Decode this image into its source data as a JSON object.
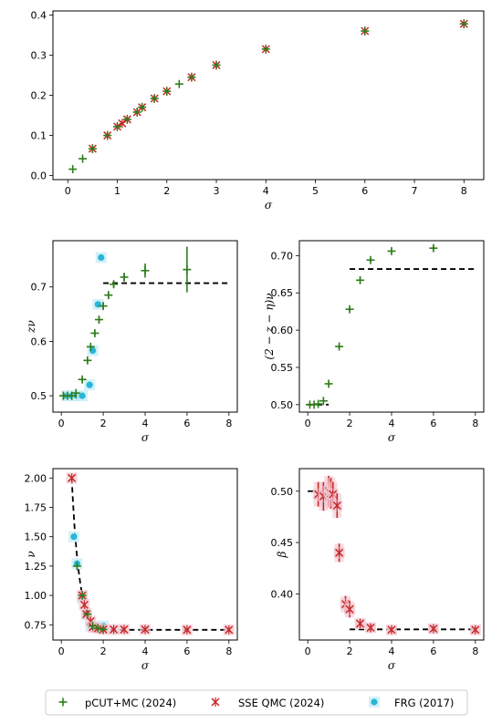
{
  "colors": {
    "pcut": "#2e7d1a",
    "sse": "#c62828",
    "frg": "#29b6d6",
    "frg_halo": "#c9eef8",
    "sse_halo": "#f2c6d0",
    "dashed": "#000000"
  },
  "legend": {
    "items": [
      {
        "key": "pcut",
        "label": "pCUT+MC (2024)"
      },
      {
        "key": "sse",
        "label": "SSE QMC (2024)"
      },
      {
        "key": "frg",
        "label": "FRG (2017)"
      }
    ]
  },
  "chart_data": [
    {
      "id": "top",
      "type": "scatter",
      "xlabel": "σ",
      "ylabel": "",
      "xlim": [
        -0.3,
        8.4
      ],
      "ylim": [
        -0.01,
        0.41
      ],
      "xticks": [
        0,
        1,
        2,
        3,
        4,
        5,
        6,
        7,
        8
      ],
      "yticks": [
        0.0,
        0.1,
        0.2,
        0.3,
        0.4
      ],
      "ytick_labels": [
        "0.0",
        "0.1",
        "0.2",
        "0.3",
        "0.4"
      ],
      "series": [
        {
          "key": "pcut",
          "points": [
            [
              0.1,
              0.016
            ],
            [
              0.3,
              0.042
            ],
            [
              0.5,
              0.067
            ],
            [
              0.8,
              0.1
            ],
            [
              1.0,
              0.122
            ],
            [
              1.2,
              0.14
            ],
            [
              1.4,
              0.158
            ],
            [
              1.5,
              0.17
            ],
            [
              1.75,
              0.192
            ],
            [
              2.0,
              0.21
            ],
            [
              2.25,
              0.228
            ],
            [
              2.5,
              0.245
            ],
            [
              3.0,
              0.275
            ],
            [
              4.0,
              0.315
            ],
            [
              6.0,
              0.36
            ],
            [
              8.0,
              0.378
            ]
          ]
        },
        {
          "key": "sse",
          "points": [
            [
              0.5,
              0.067
            ],
            [
              0.8,
              0.1
            ],
            [
              1.0,
              0.122
            ],
            [
              1.1,
              0.13
            ],
            [
              1.2,
              0.14
            ],
            [
              1.4,
              0.158
            ],
            [
              1.5,
              0.17
            ],
            [
              1.75,
              0.192
            ],
            [
              2.0,
              0.21
            ],
            [
              2.5,
              0.245
            ],
            [
              3.0,
              0.275
            ],
            [
              4.0,
              0.315
            ],
            [
              6.0,
              0.36
            ],
            [
              8.0,
              0.378
            ]
          ]
        }
      ]
    },
    {
      "id": "znu",
      "type": "scatter",
      "xlabel": "σ",
      "ylabel": "zν",
      "xlim": [
        -0.4,
        8.4
      ],
      "ylim": [
        0.47,
        0.785
      ],
      "xticks": [
        0,
        2,
        4,
        6,
        8
      ],
      "yticks": [
        0.5,
        0.6,
        0.7
      ],
      "ytick_labels": [
        "0.5",
        "0.6",
        "0.7"
      ],
      "dashed": [
        {
          "x": [
            0.0,
            1.0
          ],
          "y": 0.5
        },
        {
          "x": [
            2.0,
            8.0
          ],
          "y": 0.707
        }
      ],
      "series": [
        {
          "key": "pcut",
          "points": [
            [
              0.1,
              0.5
            ],
            [
              0.3,
              0.5
            ],
            [
              0.5,
              0.5
            ],
            [
              0.7,
              0.505
            ],
            [
              1.0,
              0.53
            ],
            [
              1.25,
              0.565
            ],
            [
              1.4,
              0.59
            ],
            [
              1.6,
              0.615
            ],
            [
              1.8,
              0.64
            ],
            [
              2.0,
              0.665
            ],
            [
              2.25,
              0.685
            ],
            [
              2.5,
              0.705
            ],
            [
              3.0,
              0.718
            ],
            [
              4.0,
              0.73
            ],
            [
              6.0,
              0.732
            ]
          ],
          "errors": [
            0,
            0,
            0,
            0,
            0.004,
            0.004,
            0.004,
            0.004,
            0.005,
            0.005,
            0.006,
            0.006,
            0.008,
            0.013,
            0.042
          ]
        },
        {
          "key": "frg",
          "points": [
            [
              0.25,
              0.5
            ],
            [
              0.5,
              0.5
            ],
            [
              0.75,
              0.5
            ],
            [
              1.0,
              0.5
            ],
            [
              1.35,
              0.52
            ],
            [
              1.5,
              0.583
            ],
            [
              1.75,
              0.668
            ],
            [
              1.9,
              0.754
            ]
          ]
        }
      ]
    },
    {
      "id": "eta",
      "type": "scatter",
      "xlabel": "σ",
      "ylabel": "(2 − z − η)ν",
      "xlim": [
        -0.4,
        8.4
      ],
      "ylim": [
        0.49,
        0.72
      ],
      "xticks": [
        0,
        2,
        4,
        6,
        8
      ],
      "yticks": [
        0.5,
        0.55,
        0.6,
        0.65,
        0.7
      ],
      "ytick_labels": [
        "0.50",
        "0.55",
        "0.60",
        "0.65",
        "0.70"
      ],
      "dashed": [
        {
          "x": [
            0.0,
            1.0
          ],
          "y": 0.5
        },
        {
          "x": [
            2.0,
            8.0
          ],
          "y": 0.682
        }
      ],
      "series": [
        {
          "key": "pcut",
          "points": [
            [
              0.1,
              0.5
            ],
            [
              0.3,
              0.5
            ],
            [
              0.5,
              0.501
            ],
            [
              0.75,
              0.505
            ],
            [
              1.0,
              0.528
            ],
            [
              1.5,
              0.578
            ],
            [
              2.0,
              0.628
            ],
            [
              2.5,
              0.667
            ],
            [
              3.0,
              0.694
            ],
            [
              4.0,
              0.706
            ],
            [
              6.0,
              0.71
            ]
          ],
          "errors": [
            0,
            0,
            0,
            0,
            0.003,
            0.003,
            0.003,
            0.003,
            0.003,
            0.003,
            0.003
          ]
        }
      ]
    },
    {
      "id": "nu",
      "type": "scatter",
      "xlabel": "σ",
      "ylabel": "ν",
      "xlim": [
        -0.4,
        8.4
      ],
      "ylim": [
        0.62,
        2.08
      ],
      "xticks": [
        0,
        2,
        4,
        6,
        8
      ],
      "yticks": [
        0.75,
        1.0,
        1.25,
        1.5,
        1.75,
        2.0
      ],
      "ytick_labels": [
        "0.75",
        "1.00",
        "1.25",
        "1.50",
        "1.75",
        "2.00"
      ],
      "dashed_curve": {
        "x_start": 0.5,
        "x_end": 8.0,
        "x_knee": 1.5,
        "y_floor": 0.707
      },
      "series": [
        {
          "key": "pcut",
          "points": [
            [
              0.75,
              1.25
            ],
            [
              1.0,
              1.0
            ],
            [
              1.25,
              0.84
            ],
            [
              1.5,
              0.74
            ],
            [
              1.75,
              0.72
            ],
            [
              2.0,
              0.71
            ]
          ]
        },
        {
          "key": "sse",
          "points": [
            [
              0.5,
              2.0
            ],
            [
              1.0,
              1.0
            ],
            [
              1.1,
              0.92
            ],
            [
              1.2,
              0.84
            ],
            [
              1.4,
              0.78
            ],
            [
              1.5,
              0.73
            ],
            [
              1.75,
              0.72
            ],
            [
              2.0,
              0.71
            ],
            [
              2.5,
              0.71
            ],
            [
              3.0,
              0.71
            ],
            [
              4.0,
              0.71
            ],
            [
              6.0,
              0.707
            ],
            [
              8.0,
              0.707
            ]
          ]
        },
        {
          "key": "frg",
          "points": [
            [
              0.6,
              1.5
            ],
            [
              0.75,
              1.27
            ],
            [
              1.0,
              0.98
            ],
            [
              1.2,
              0.84
            ],
            [
              1.4,
              0.74
            ],
            [
              1.6,
              0.73
            ],
            [
              1.8,
              0.73
            ],
            [
              2.0,
              0.74
            ]
          ]
        }
      ]
    },
    {
      "id": "beta",
      "type": "scatter",
      "xlabel": "σ",
      "ylabel": "β",
      "xlim": [
        -0.4,
        8.4
      ],
      "ylim": [
        0.355,
        0.522
      ],
      "xticks": [
        0,
        2,
        4,
        6,
        8
      ],
      "yticks": [
        0.4,
        0.45,
        0.5
      ],
      "ytick_labels": [
        "0.40",
        "0.45",
        "0.50"
      ],
      "dashed": [
        {
          "x": [
            0.0,
            1.0
          ],
          "y": 0.5
        },
        {
          "x": [
            2.0,
            8.0
          ],
          "y": 0.3654
        }
      ],
      "series": [
        {
          "key": "sse",
          "points": [
            [
              0.5,
              0.497
            ],
            [
              0.75,
              0.495
            ],
            [
              1.0,
              0.5
            ],
            [
              1.1,
              0.498
            ],
            [
              1.2,
              0.497
            ],
            [
              1.4,
              0.486
            ],
            [
              1.5,
              0.44
            ],
            [
              1.8,
              0.39
            ],
            [
              2.0,
              0.385
            ],
            [
              2.5,
              0.371
            ],
            [
              3.0,
              0.367
            ],
            [
              4.0,
              0.365
            ],
            [
              6.0,
              0.366
            ],
            [
              8.0,
              0.365
            ]
          ],
          "errors": [
            0.012,
            0.014,
            0.015,
            0.015,
            0.012,
            0.012,
            0.009,
            0.008,
            0.008,
            0.005,
            0.004,
            0.003,
            0.003,
            0.003
          ]
        }
      ]
    }
  ]
}
